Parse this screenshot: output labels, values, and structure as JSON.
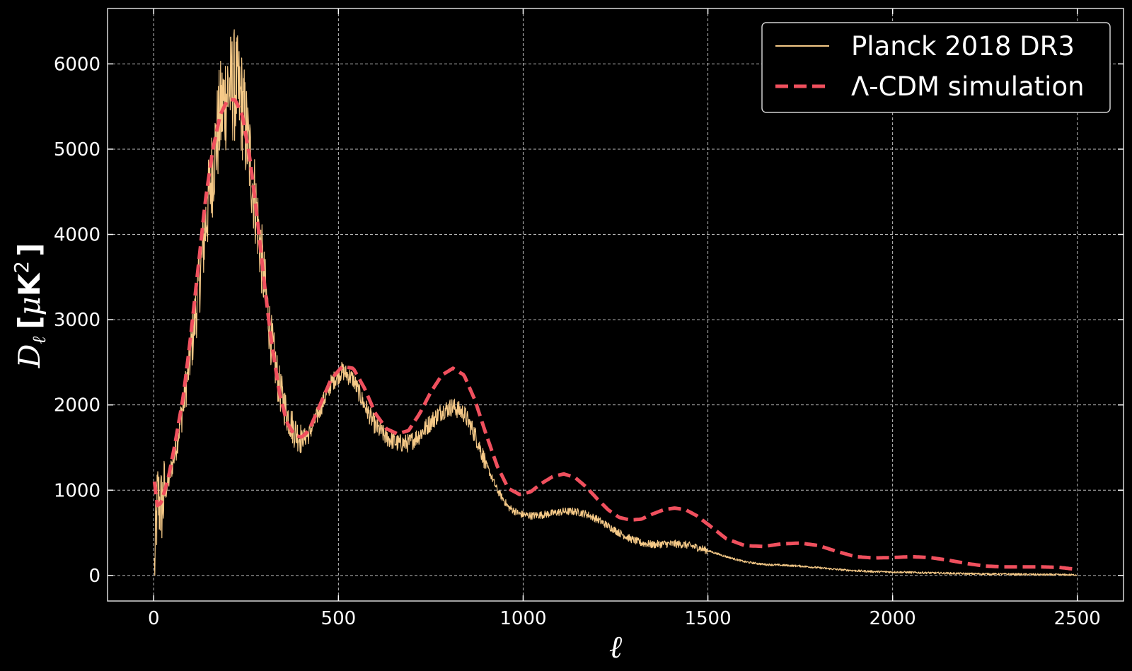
{
  "chart_data": {
    "type": "line",
    "title": "",
    "xlabel": "ℓ",
    "ylabel_main": "D",
    "ylabel_sub": "ℓ",
    "ylabel_unit_open": "[",
    "ylabel_unit_mu": "μ",
    "ylabel_unit_K": "K",
    "ylabel_unit_exp": "2",
    "ylabel_unit_close": "]",
    "xlim": [
      -125,
      2625
    ],
    "ylim": [
      -300,
      6650
    ],
    "xticks": [
      0,
      500,
      1000,
      1500,
      2000,
      2500
    ],
    "yticks": [
      0,
      1000,
      2000,
      3000,
      4000,
      5000,
      6000
    ],
    "xtick_labels": [
      "0",
      "500",
      "1000",
      "1500",
      "2000",
      "2500"
    ],
    "ytick_labels": [
      "0",
      "1000",
      "2000",
      "3000",
      "4000",
      "5000",
      "6000"
    ],
    "grid": true,
    "legend_position": "top-right",
    "series": [
      {
        "name": "Planck 2018 DR3",
        "style": "solid-noisy",
        "color": "#f5c987",
        "x": [
          2,
          10,
          20,
          40,
          60,
          80,
          100,
          120,
          140,
          160,
          180,
          200,
          220,
          240,
          260,
          280,
          300,
          320,
          340,
          360,
          380,
          400,
          420,
          450,
          480,
          510,
          540,
          570,
          600,
          630,
          660,
          690,
          720,
          750,
          780,
          810,
          840,
          870,
          900,
          930,
          960,
          990,
          1020,
          1050,
          1080,
          1110,
          1140,
          1170,
          1200,
          1230,
          1260,
          1290,
          1320,
          1350,
          1380,
          1410,
          1440,
          1470,
          1500,
          1550,
          1600,
          1650,
          1700,
          1750,
          1800,
          1850,
          1900,
          1950,
          2000,
          2100,
          2200,
          2300,
          2400,
          2500
        ],
        "values": [
          50,
          900,
          800,
          1100,
          1500,
          2000,
          2600,
          3300,
          4100,
          4800,
          5400,
          5700,
          5750,
          5500,
          4900,
          4200,
          3400,
          2700,
          2200,
          1900,
          1700,
          1600,
          1650,
          1950,
          2250,
          2400,
          2300,
          2000,
          1750,
          1620,
          1550,
          1550,
          1650,
          1800,
          1930,
          1980,
          1900,
          1650,
          1300,
          1000,
          800,
          720,
          700,
          710,
          730,
          750,
          750,
          720,
          660,
          580,
          500,
          430,
          380,
          360,
          370,
          370,
          360,
          330,
          290,
          220,
          160,
          130,
          120,
          110,
          90,
          70,
          55,
          45,
          40,
          30,
          20,
          15,
          10,
          5
        ]
      },
      {
        "name": "Λ-CDM simulation",
        "style": "dashed",
        "color": "#f0505e",
        "x": [
          2,
          10,
          20,
          40,
          60,
          80,
          100,
          120,
          140,
          160,
          180,
          200,
          220,
          240,
          260,
          280,
          300,
          320,
          340,
          360,
          380,
          400,
          420,
          450,
          480,
          510,
          540,
          570,
          600,
          630,
          660,
          690,
          720,
          750,
          780,
          810,
          840,
          870,
          900,
          930,
          960,
          990,
          1020,
          1050,
          1080,
          1110,
          1140,
          1170,
          1200,
          1230,
          1260,
          1290,
          1320,
          1350,
          1380,
          1410,
          1440,
          1470,
          1500,
          1550,
          1600,
          1650,
          1700,
          1750,
          1800,
          1850,
          1900,
          1950,
          2000,
          2050,
          2100,
          2150,
          2200,
          2250,
          2300,
          2350,
          2400,
          2450,
          2500
        ],
        "values": [
          1100,
          820,
          850,
          1150,
          1600,
          2100,
          2800,
          3600,
          4400,
          5000,
          5400,
          5580,
          5580,
          5400,
          4900,
          4200,
          3400,
          2700,
          2150,
          1800,
          1650,
          1620,
          1700,
          2000,
          2300,
          2450,
          2430,
          2200,
          1900,
          1720,
          1660,
          1700,
          1900,
          2150,
          2350,
          2430,
          2350,
          2050,
          1650,
          1280,
          1020,
          950,
          980,
          1080,
          1160,
          1190,
          1150,
          1040,
          900,
          770,
          680,
          650,
          660,
          720,
          770,
          790,
          770,
          700,
          600,
          430,
          350,
          340,
          370,
          380,
          350,
          280,
          220,
          205,
          210,
          220,
          210,
          180,
          140,
          110,
          100,
          100,
          100,
          95,
          70
        ]
      }
    ]
  }
}
